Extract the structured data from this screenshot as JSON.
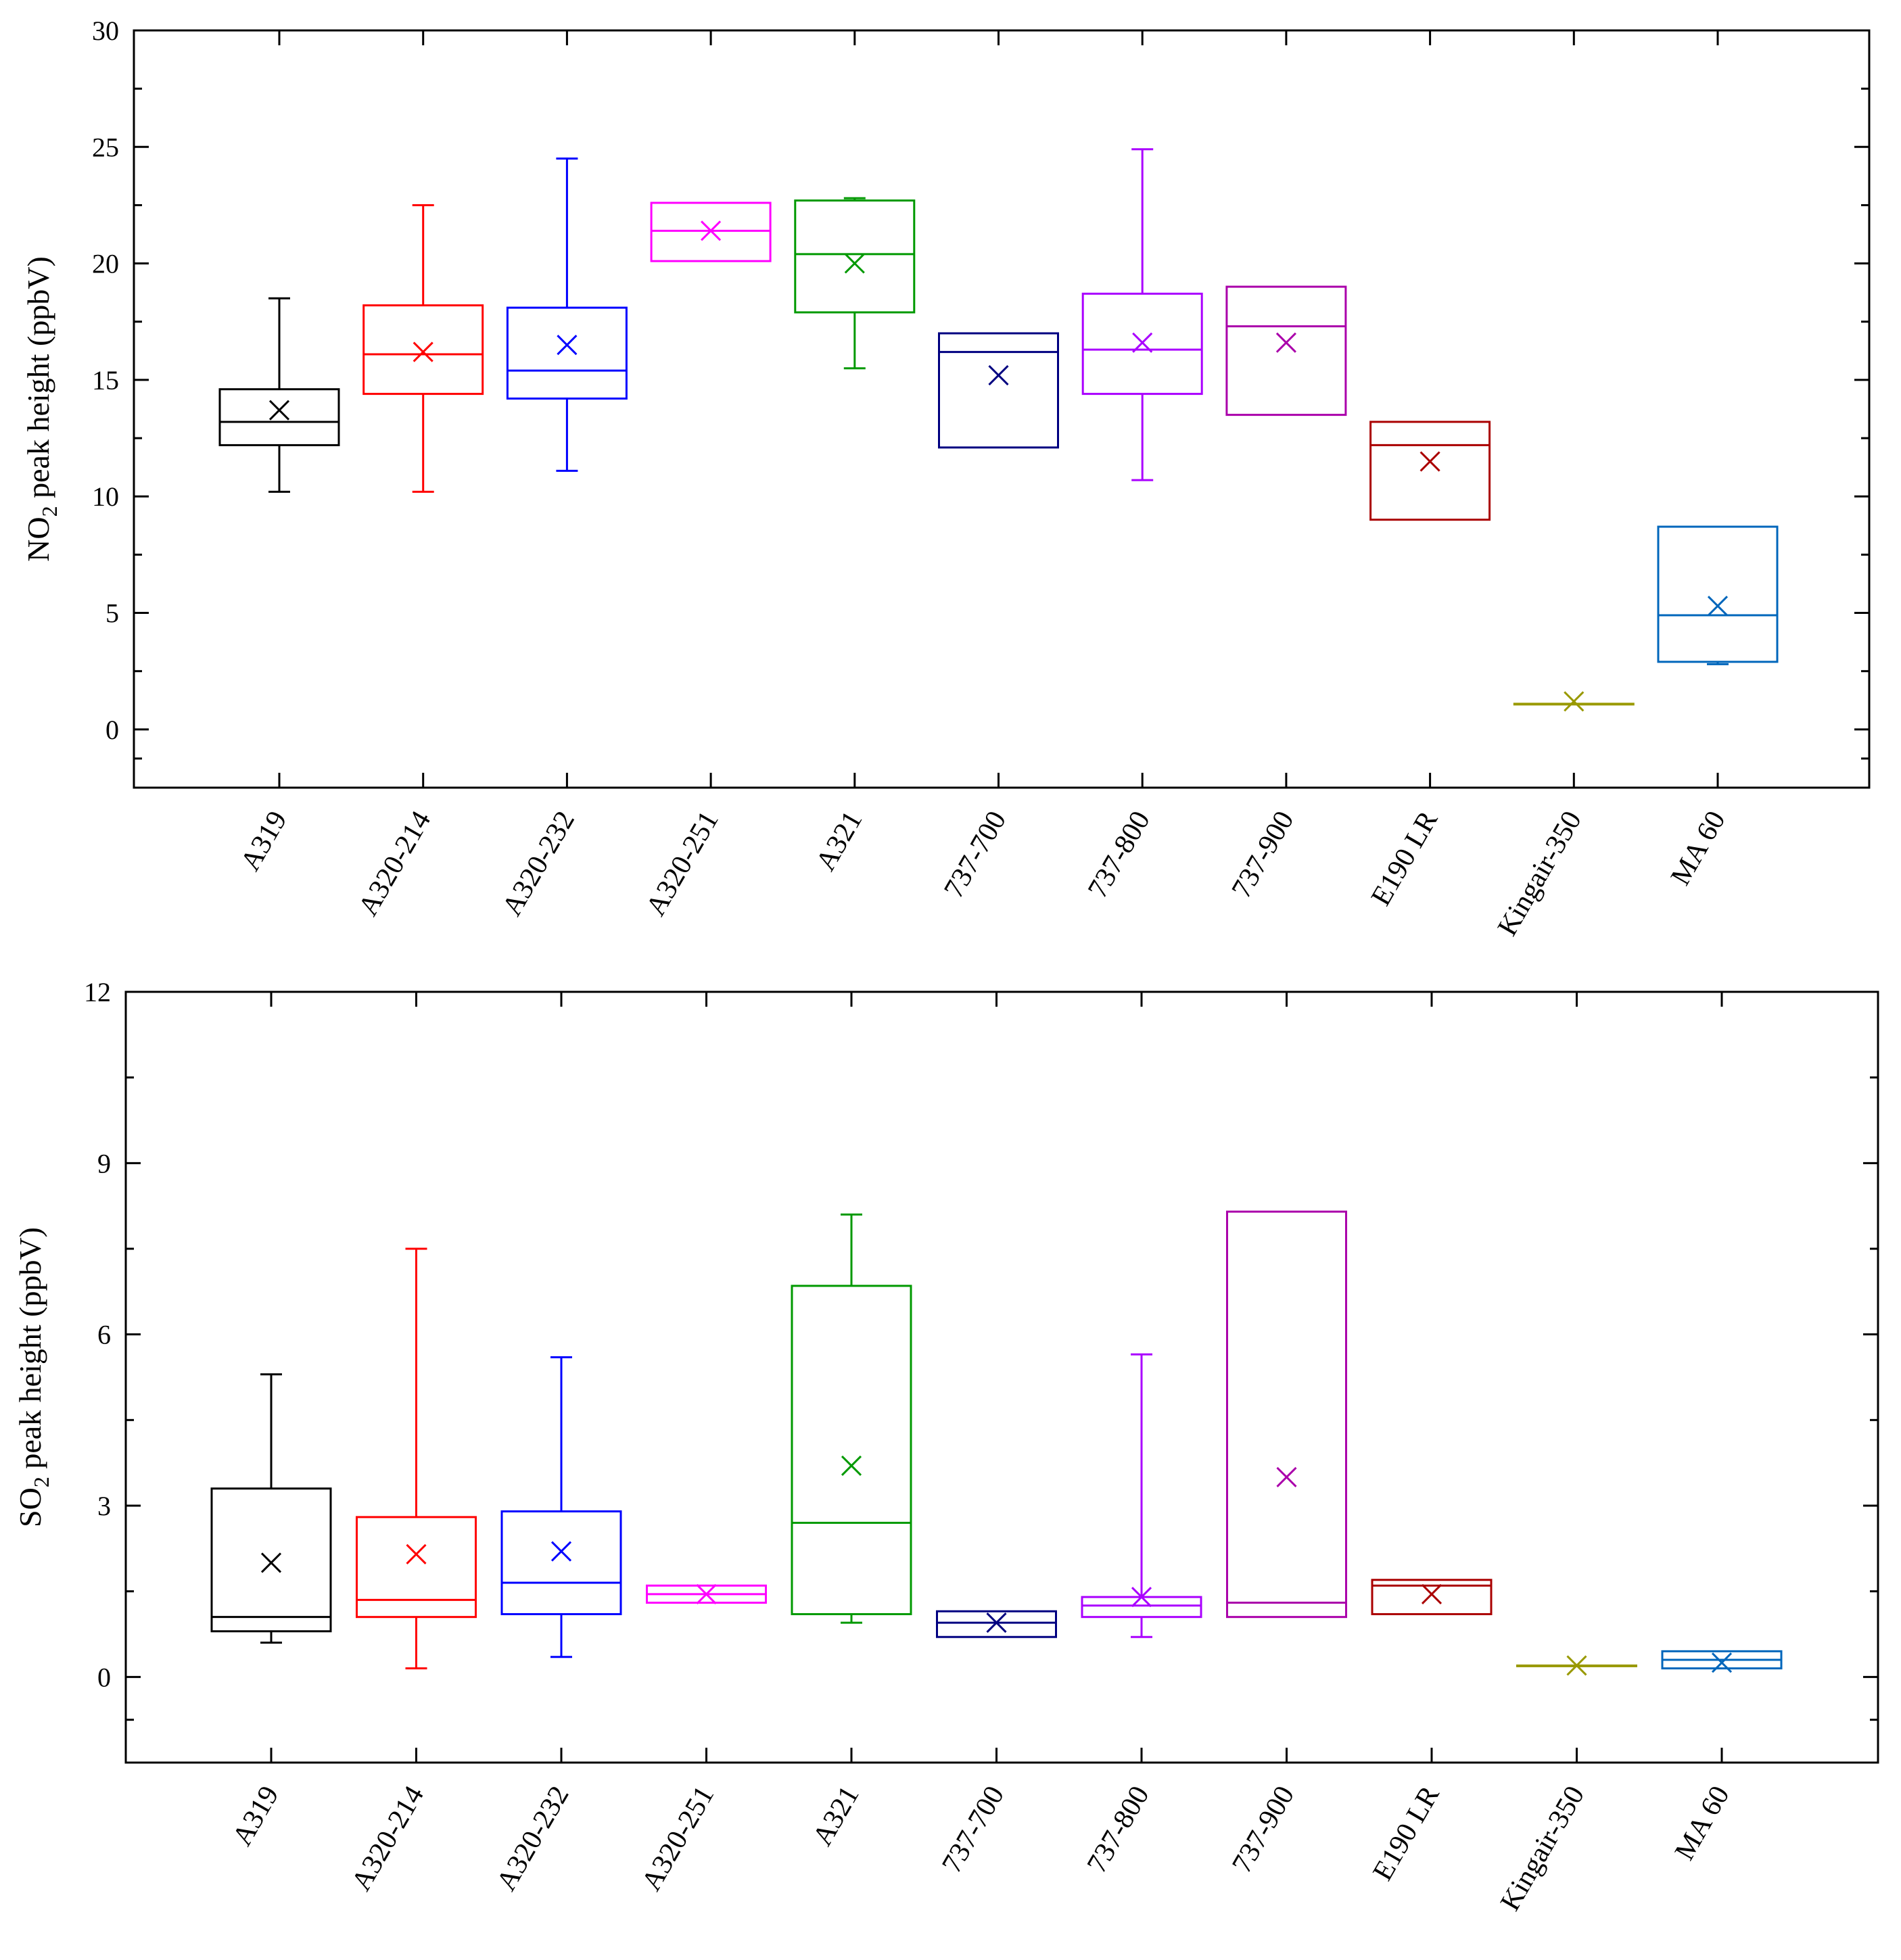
{
  "chart_data": [
    {
      "type": "box",
      "ylabel_main": "NO",
      "ylabel_sub": "2",
      "ylabel_rest": " peak height (ppbV)",
      "ylim": [
        -2.5,
        30
      ],
      "yticks": [
        0,
        5,
        10,
        15,
        20,
        25,
        30
      ],
      "categories": [
        "A319",
        "A320-214",
        "A320-232",
        "A320-251",
        "A321",
        "737-700",
        "737-800",
        "737-900",
        "E190 LR",
        "Kingair-350",
        "MA 60"
      ],
      "colors": [
        "#000000",
        "#ff0000",
        "#0000ff",
        "#ff00ff",
        "#009900",
        "#000080",
        "#aa00ff",
        "#aa00aa",
        "#aa0000",
        "#999900",
        "#0066bb"
      ],
      "boxes": [
        {
          "whisker_low": 10.2,
          "q1": 12.2,
          "median": 13.2,
          "q3": 14.6,
          "whisker_high": 18.5,
          "mean": 13.7
        },
        {
          "whisker_low": 10.2,
          "q1": 14.4,
          "median": 16.1,
          "q3": 18.2,
          "whisker_high": 22.5,
          "mean": 16.2
        },
        {
          "whisker_low": 11.1,
          "q1": 14.2,
          "median": 15.4,
          "q3": 18.1,
          "whisker_high": 24.5,
          "mean": 16.5
        },
        {
          "whisker_low": null,
          "q1": 20.1,
          "median": 21.4,
          "q3": 22.6,
          "whisker_high": null,
          "mean": 21.4
        },
        {
          "whisker_low": 15.5,
          "q1": 17.9,
          "median": 20.4,
          "q3": 22.7,
          "whisker_high": 22.8,
          "mean": 20.0
        },
        {
          "whisker_low": null,
          "q1": 12.1,
          "median": 16.2,
          "q3": 17.0,
          "whisker_high": null,
          "mean": 15.2
        },
        {
          "whisker_low": 10.7,
          "q1": 14.4,
          "median": 16.3,
          "q3": 18.7,
          "whisker_high": 24.9,
          "mean": 16.6
        },
        {
          "whisker_low": null,
          "q1": 13.5,
          "median": 17.3,
          "q3": 19.0,
          "whisker_high": null,
          "mean": 16.6
        },
        {
          "whisker_low": null,
          "q1": 9.0,
          "median": 12.2,
          "q3": 13.2,
          "whisker_high": null,
          "mean": 11.5
        },
        {
          "whisker_low": null,
          "q1": 1.1,
          "median": 1.1,
          "q3": 1.1,
          "whisker_high": null,
          "mean": 1.2
        },
        {
          "whisker_low": 2.8,
          "q1": 2.9,
          "median": 4.9,
          "q3": 8.7,
          "whisker_high": null,
          "mean": 5.3
        }
      ]
    },
    {
      "type": "box",
      "ylabel_main": "SO",
      "ylabel_sub": "2",
      "ylabel_rest": " peak height (ppbV)",
      "ylim": [
        -1.5,
        12
      ],
      "yticks": [
        0,
        3,
        6,
        9,
        12
      ],
      "categories": [
        "A319",
        "A320-214",
        "A320-232",
        "A320-251",
        "A321",
        "737-700",
        "737-800",
        "737-900",
        "E190 LR",
        "Kingair-350",
        "MA 60"
      ],
      "colors": [
        "#000000",
        "#ff0000",
        "#0000ff",
        "#ff00ff",
        "#009900",
        "#000080",
        "#aa00ff",
        "#aa00aa",
        "#aa0000",
        "#999900",
        "#0066bb"
      ],
      "boxes": [
        {
          "whisker_low": 0.6,
          "q1": 0.8,
          "median": 1.05,
          "q3": 3.3,
          "whisker_high": 5.3,
          "mean": 2.0
        },
        {
          "whisker_low": 0.15,
          "q1": 1.05,
          "median": 1.35,
          "q3": 2.8,
          "whisker_high": 7.5,
          "mean": 2.15
        },
        {
          "whisker_low": 0.35,
          "q1": 1.1,
          "median": 1.65,
          "q3": 2.9,
          "whisker_high": 5.6,
          "mean": 2.2
        },
        {
          "whisker_low": null,
          "q1": 1.3,
          "median": 1.45,
          "q3": 1.6,
          "whisker_high": null,
          "mean": 1.45
        },
        {
          "whisker_low": 0.95,
          "q1": 1.1,
          "median": 2.7,
          "q3": 6.85,
          "whisker_high": 8.1,
          "mean": 3.7
        },
        {
          "whisker_low": null,
          "q1": 0.7,
          "median": 0.95,
          "q3": 1.15,
          "whisker_high": null,
          "mean": 0.95
        },
        {
          "whisker_low": 0.7,
          "q1": 1.05,
          "median": 1.25,
          "q3": 1.4,
          "whisker_high": 5.65,
          "mean": 1.4
        },
        {
          "whisker_low": null,
          "q1": 1.05,
          "median": 1.3,
          "q3": 8.15,
          "whisker_high": null,
          "mean": 3.5
        },
        {
          "whisker_low": null,
          "q1": 1.1,
          "median": 1.6,
          "q3": 1.7,
          "whisker_high": null,
          "mean": 1.45
        },
        {
          "whisker_low": null,
          "q1": 0.2,
          "median": 0.2,
          "q3": 0.2,
          "whisker_high": null,
          "mean": 0.2
        },
        {
          "whisker_low": null,
          "q1": 0.15,
          "median": 0.3,
          "q3": 0.45,
          "whisker_high": null,
          "mean": 0.25
        }
      ]
    }
  ]
}
